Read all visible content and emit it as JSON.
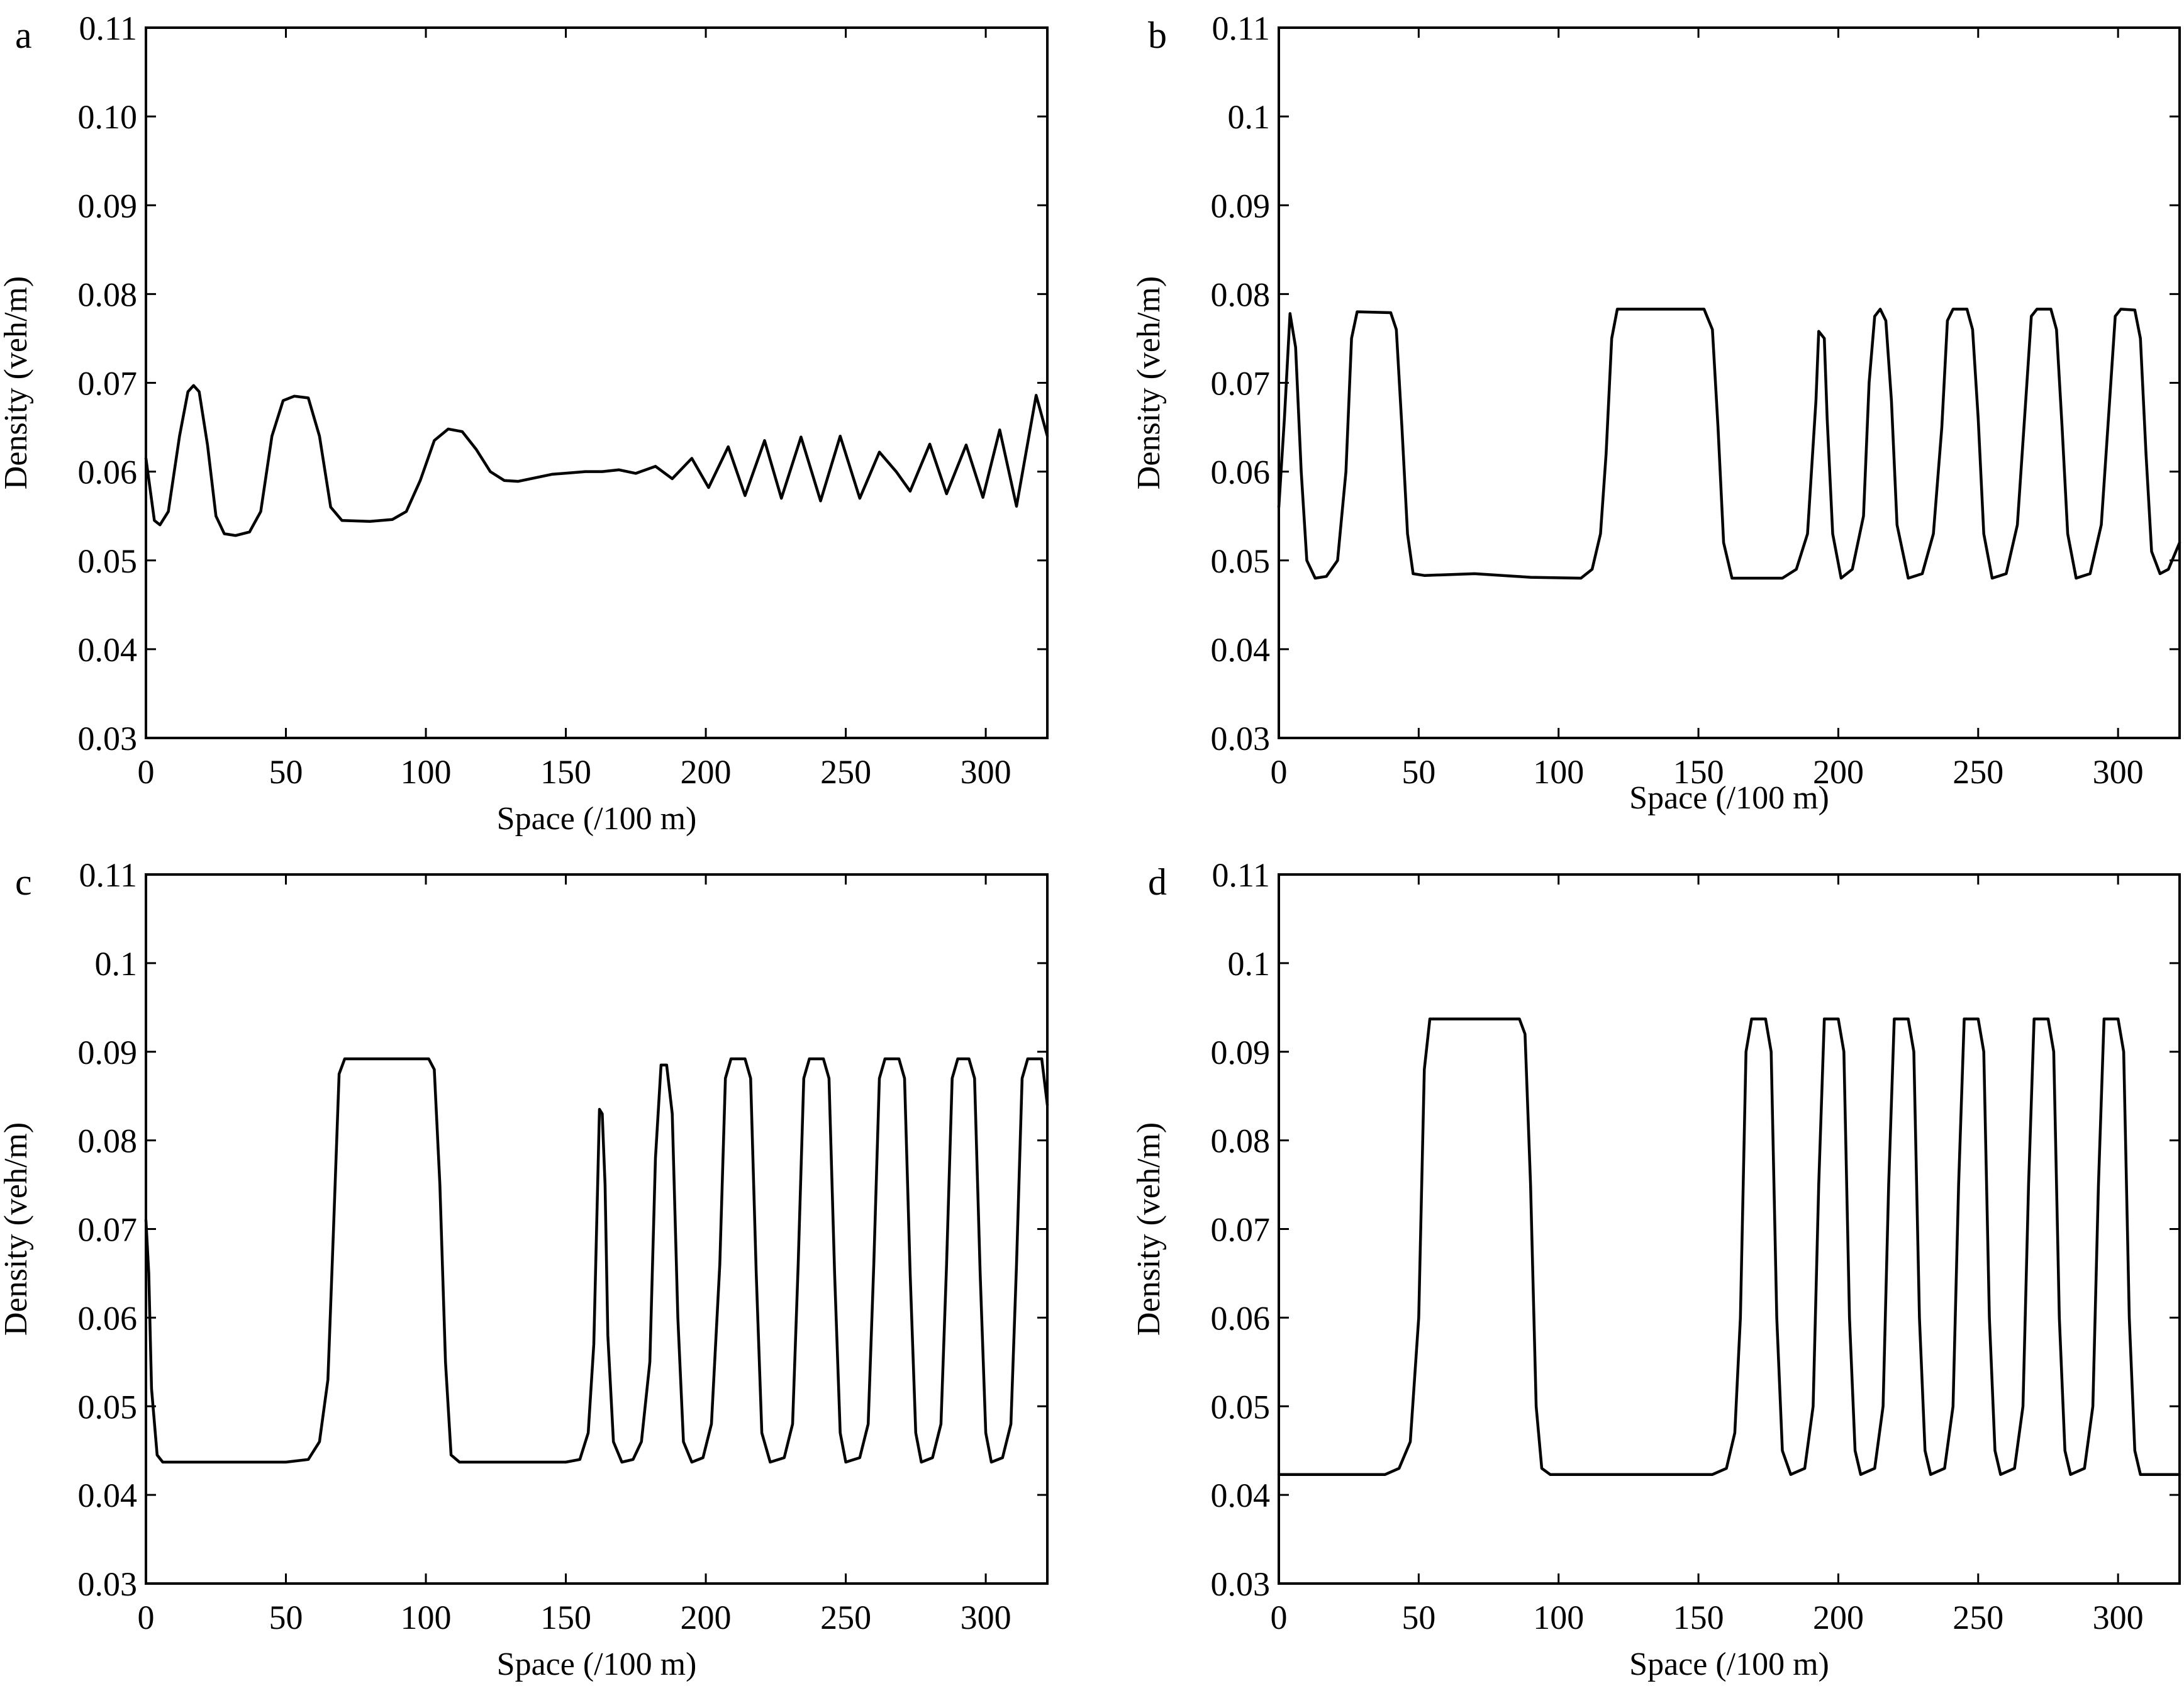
{
  "chart_data": [
    {
      "type": "line",
      "panel_label": "a",
      "xlabel": "Space (/100 m)",
      "ylabel": "Density (veh/m)",
      "xlim": [
        0,
        322
      ],
      "ylim": [
        0.03,
        0.11
      ],
      "xticks": [
        "0",
        "50",
        "100",
        "150",
        "200",
        "250",
        "300"
      ],
      "yticks": [
        "0.03",
        "0.04",
        "0.05",
        "0.06",
        "0.07",
        "0.08",
        "0.09",
        "0.10",
        "0.11"
      ],
      "grid": false,
      "line_color": "#000000",
      "x": [
        0,
        3,
        5,
        8,
        12,
        15,
        17,
        19,
        22,
        25,
        28,
        32,
        37,
        41,
        45,
        49,
        53,
        58,
        62,
        66,
        70,
        80,
        88,
        93,
        98,
        103,
        108,
        113,
        118,
        123,
        128,
        133,
        145,
        157,
        163,
        169,
        175,
        182,
        188,
        195,
        201,
        208,
        214,
        221,
        227,
        234,
        241,
        248,
        255,
        262,
        268,
        273,
        280,
        286,
        293,
        299,
        305,
        311,
        318,
        322
      ],
      "y": [
        0.0615,
        0.0545,
        0.054,
        0.0555,
        0.064,
        0.069,
        0.0697,
        0.069,
        0.063,
        0.055,
        0.053,
        0.0528,
        0.0532,
        0.0555,
        0.064,
        0.068,
        0.0685,
        0.0683,
        0.064,
        0.056,
        0.0545,
        0.0544,
        0.0546,
        0.0555,
        0.059,
        0.0635,
        0.0648,
        0.0645,
        0.0625,
        0.06,
        0.059,
        0.0589,
        0.0597,
        0.06,
        0.06,
        0.0602,
        0.0598,
        0.0606,
        0.0592,
        0.0615,
        0.0582,
        0.0628,
        0.0573,
        0.0635,
        0.057,
        0.0639,
        0.0567,
        0.064,
        0.057,
        0.0622,
        0.06,
        0.0578,
        0.0631,
        0.0575,
        0.063,
        0.0571,
        0.0647,
        0.0561,
        0.0686,
        0.064
      ]
    },
    {
      "type": "line",
      "panel_label": "b",
      "xlabel": "Space (/100 m)",
      "ylabel": "Density (veh/m)",
      "xlim": [
        0,
        322
      ],
      "ylim": [
        0.03,
        0.11
      ],
      "xticks": [
        "0",
        "50",
        "100",
        "150",
        "200",
        "250",
        "300"
      ],
      "yticks": [
        "0.03",
        "0.04",
        "0.05",
        "0.06",
        "0.07",
        "0.08",
        "0.09",
        "0.1",
        "0.11"
      ],
      "grid": false,
      "line_color": "#000000",
      "x": [
        0,
        2,
        4,
        6,
        8,
        10,
        13,
        17,
        21,
        24,
        26,
        28,
        40,
        42,
        44,
        46,
        48,
        52,
        70,
        90,
        108,
        112,
        115,
        117,
        119,
        121,
        152,
        155,
        157,
        159,
        162,
        180,
        185,
        189,
        192,
        193,
        195,
        196,
        198,
        201,
        205,
        209,
        211,
        213,
        215,
        217,
        219,
        221,
        225,
        230,
        234,
        237,
        239,
        241,
        246,
        248,
        250,
        252,
        255,
        260,
        264,
        267,
        269,
        271,
        276,
        278,
        280,
        282,
        285,
        290,
        294,
        297,
        299,
        301,
        306,
        308,
        310,
        312,
        315,
        318,
        322
      ],
      "y": [
        0.056,
        0.066,
        0.0778,
        0.074,
        0.06,
        0.05,
        0.048,
        0.0482,
        0.05,
        0.06,
        0.075,
        0.078,
        0.0779,
        0.076,
        0.065,
        0.053,
        0.0485,
        0.0483,
        0.0485,
        0.0481,
        0.048,
        0.049,
        0.053,
        0.062,
        0.075,
        0.0783,
        0.0783,
        0.076,
        0.065,
        0.052,
        0.048,
        0.048,
        0.049,
        0.053,
        0.068,
        0.0758,
        0.075,
        0.066,
        0.053,
        0.048,
        0.049,
        0.055,
        0.07,
        0.0775,
        0.0783,
        0.077,
        0.068,
        0.054,
        0.048,
        0.0485,
        0.053,
        0.065,
        0.077,
        0.0783,
        0.0783,
        0.076,
        0.066,
        0.053,
        0.048,
        0.0485,
        0.054,
        0.068,
        0.0775,
        0.0783,
        0.0783,
        0.076,
        0.065,
        0.053,
        0.048,
        0.0485,
        0.054,
        0.068,
        0.0775,
        0.0783,
        0.0782,
        0.075,
        0.062,
        0.051,
        0.0485,
        0.049,
        0.052
      ]
    },
    {
      "type": "line",
      "panel_label": "c",
      "xlabel": "Space (/100 m)",
      "ylabel": "Density (veh/m)",
      "xlim": [
        0,
        322
      ],
      "ylim": [
        0.03,
        0.11
      ],
      "xticks": [
        "0",
        "50",
        "100",
        "150",
        "200",
        "250",
        "300"
      ],
      "yticks": [
        "0.03",
        "0.04",
        "0.05",
        "0.06",
        "0.07",
        "0.08",
        "0.09",
        "0.1",
        "0.11"
      ],
      "grid": false,
      "line_color": "#000000",
      "x": [
        0,
        1,
        2,
        4,
        6,
        50,
        58,
        62,
        65,
        67,
        69,
        71,
        101,
        103,
        105,
        107,
        109,
        112,
        150,
        155,
        158,
        160,
        162,
        163,
        164,
        165,
        167,
        170,
        174,
        177,
        180,
        182,
        184,
        186,
        188,
        190,
        192,
        195,
        199,
        202,
        205,
        207,
        209,
        214,
        216,
        218,
        220,
        223,
        228,
        231,
        233,
        235,
        237,
        242,
        244,
        246,
        248,
        250,
        255,
        258,
        260,
        262,
        264,
        269,
        271,
        273,
        275,
        277,
        281,
        284,
        286,
        288,
        290,
        294,
        296,
        298,
        300,
        302,
        306,
        309,
        311,
        313,
        315,
        320,
        322
      ],
      "y": [
        0.071,
        0.065,
        0.052,
        0.0445,
        0.0437,
        0.0437,
        0.044,
        0.046,
        0.053,
        0.07,
        0.0875,
        0.0892,
        0.0892,
        0.088,
        0.075,
        0.055,
        0.0445,
        0.0437,
        0.0437,
        0.044,
        0.047,
        0.057,
        0.0835,
        0.083,
        0.075,
        0.058,
        0.046,
        0.0437,
        0.044,
        0.046,
        0.055,
        0.078,
        0.0885,
        0.0885,
        0.083,
        0.06,
        0.046,
        0.0437,
        0.0442,
        0.048,
        0.066,
        0.087,
        0.0892,
        0.0892,
        0.087,
        0.065,
        0.047,
        0.0437,
        0.0442,
        0.048,
        0.066,
        0.087,
        0.0892,
        0.0892,
        0.087,
        0.065,
        0.047,
        0.0437,
        0.0442,
        0.048,
        0.066,
        0.087,
        0.0892,
        0.0892,
        0.087,
        0.065,
        0.047,
        0.0437,
        0.0442,
        0.048,
        0.066,
        0.087,
        0.0892,
        0.0892,
        0.087,
        0.065,
        0.047,
        0.0437,
        0.0442,
        0.048,
        0.066,
        0.087,
        0.0892,
        0.0892,
        0.084
      ]
    },
    {
      "type": "line",
      "panel_label": "d",
      "xlabel": "Space (/100 m)",
      "ylabel": "Density (veh/m)",
      "xlim": [
        0,
        322
      ],
      "ylim": [
        0.03,
        0.11
      ],
      "xticks": [
        "0",
        "50",
        "100",
        "150",
        "200",
        "250",
        "300"
      ],
      "yticks": [
        "0.03",
        "0.04",
        "0.05",
        "0.06",
        "0.07",
        "0.08",
        "0.09",
        "0.1",
        "0.11"
      ],
      "grid": false,
      "line_color": "#000000",
      "x": [
        0,
        38,
        43,
        47,
        50,
        52,
        54,
        86,
        88,
        90,
        92,
        94,
        97,
        155,
        160,
        163,
        165,
        167,
        169,
        174,
        176,
        178,
        180,
        183,
        188,
        191,
        193,
        195,
        200,
        202,
        204,
        206,
        208,
        213,
        216,
        218,
        220,
        225,
        227,
        229,
        231,
        233,
        238,
        241,
        243,
        245,
        250,
        252,
        254,
        256,
        258,
        263,
        266,
        268,
        270,
        275,
        277,
        279,
        281,
        283,
        288,
        291,
        293,
        295,
        300,
        302,
        304,
        306,
        308,
        322
      ],
      "y": [
        0.0423,
        0.0423,
        0.043,
        0.046,
        0.06,
        0.088,
        0.0937,
        0.0937,
        0.092,
        0.075,
        0.05,
        0.043,
        0.0423,
        0.0423,
        0.043,
        0.047,
        0.06,
        0.09,
        0.0937,
        0.0937,
        0.09,
        0.06,
        0.045,
        0.0423,
        0.043,
        0.05,
        0.075,
        0.0937,
        0.0937,
        0.09,
        0.06,
        0.045,
        0.0423,
        0.043,
        0.05,
        0.075,
        0.0937,
        0.0937,
        0.09,
        0.06,
        0.045,
        0.0423,
        0.043,
        0.05,
        0.075,
        0.0937,
        0.0937,
        0.09,
        0.06,
        0.045,
        0.0423,
        0.043,
        0.05,
        0.075,
        0.0937,
        0.0937,
        0.09,
        0.06,
        0.045,
        0.0423,
        0.043,
        0.05,
        0.075,
        0.0937,
        0.0937,
        0.09,
        0.06,
        0.045,
        0.0423,
        0.0423
      ]
    }
  ]
}
